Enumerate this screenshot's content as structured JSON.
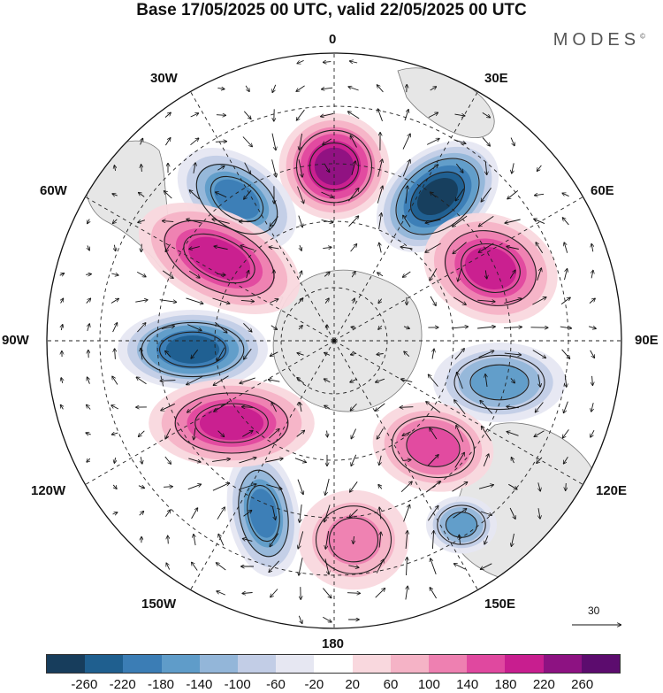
{
  "title": "Base 17/05/2025 00 UTC, valid 22/05/2025 00 UTC",
  "brand": "MODES",
  "brand_mark": "©",
  "longitude_labels": {
    "lon_0": "0",
    "lon_30e": "30E",
    "lon_60e": "60E",
    "lon_90e": "90E",
    "lon_120e": "120E",
    "lon_150e": "150E",
    "lon_180": "180",
    "lon_150w": "150W",
    "lon_120w": "120W",
    "lon_90w": "90W",
    "lon_60w": "60W",
    "lon_30w": "30W"
  },
  "reference_vector": "30",
  "colorbar": {
    "ticks": [
      "-260",
      "-220",
      "-180",
      "-140",
      "-100",
      "-60",
      "-20",
      "20",
      "60",
      "100",
      "140",
      "180",
      "220",
      "260"
    ],
    "colors": [
      "#173d5c",
      "#1f5f8f",
      "#3b7db5",
      "#5f9cc9",
      "#93b6d9",
      "#c2cde6",
      "#e6e7f2",
      "#ffffff",
      "#f9d8de",
      "#f5b3c6",
      "#ee80b1",
      "#e0489f",
      "#c81e8f",
      "#8d1282",
      "#5c0c6e"
    ]
  },
  "anomaly_centers": [
    {
      "sign": "negative",
      "level": -220
    },
    {
      "sign": "positive",
      "level": 180
    },
    {
      "sign": "negative",
      "level": -140
    },
    {
      "sign": "positive",
      "level": 140
    },
    {
      "sign": "negative",
      "level": -180
    },
    {
      "sign": "positive",
      "level": 140
    },
    {
      "sign": "negative",
      "level": -100
    },
    {
      "sign": "positive",
      "level": 100
    },
    {
      "sign": "negative",
      "level": -140
    },
    {
      "sign": "positive",
      "level": 140
    },
    {
      "sign": "negative",
      "level": -100
    },
    {
      "sign": "positive",
      "level": 60
    }
  ]
}
